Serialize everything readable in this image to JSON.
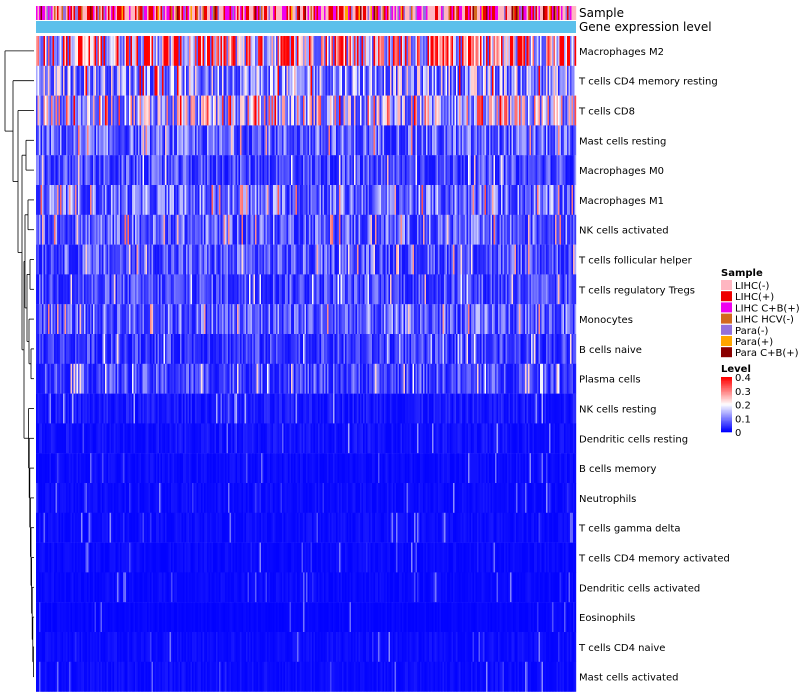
{
  "chart_data": {
    "type": "heatmap",
    "annotation_tracks": [
      "Sample",
      "Gene expression level"
    ],
    "rows": [
      {
        "name": "Macrophages M2",
        "mean": 0.28
      },
      {
        "name": "T cells CD4 memory resting",
        "mean": 0.13
      },
      {
        "name": "T cells CD8",
        "mean": 0.18
      },
      {
        "name": "Mast cells resting",
        "mean": 0.08
      },
      {
        "name": "Macrophages M0",
        "mean": 0.06
      },
      {
        "name": "Macrophages M1",
        "mean": 0.09
      },
      {
        "name": "NK cells activated",
        "mean": 0.08
      },
      {
        "name": "T cells follicular helper",
        "mean": 0.07
      },
      {
        "name": "T cells regulatory  Tregs",
        "mean": 0.06
      },
      {
        "name": "Monocytes",
        "mean": 0.08
      },
      {
        "name": "B cells naive",
        "mean": 0.05
      },
      {
        "name": "Plasma cells",
        "mean": 0.06
      },
      {
        "name": "NK cells resting",
        "mean": 0.02
      },
      {
        "name": "Dendritic cells resting",
        "mean": 0.015
      },
      {
        "name": "B cells memory",
        "mean": 0.01
      },
      {
        "name": "Neutrophils",
        "mean": 0.01
      },
      {
        "name": "T cells gamma delta",
        "mean": 0.01
      },
      {
        "name": "T cells CD4 memory activated",
        "mean": 0.008
      },
      {
        "name": "Dendritic cells activated",
        "mean": 0.008
      },
      {
        "name": "Eosinophils",
        "mean": 0.005
      },
      {
        "name": "T cells CD4 naive",
        "mean": 0.01
      },
      {
        "name": "Mast cells activated",
        "mean": 0.01
      }
    ],
    "sample_legend": {
      "title": "Sample",
      "items": [
        {
          "label": "LIHC(-)",
          "color": "#FFB6C1"
        },
        {
          "label": "LIHC(+)",
          "color": "#EE0000"
        },
        {
          "label": "LIHC C+B(+)",
          "color": "#EE00EE"
        },
        {
          "label": "LIHC HCV(-)",
          "color": "#D2691E"
        },
        {
          "label": "Para(-)",
          "color": "#9370DB"
        },
        {
          "label": "Para(+)",
          "color": "#FFA500"
        },
        {
          "label": "Para C+B(+)",
          "color": "#8B0000"
        }
      ]
    },
    "level_legend": {
      "title": "Level",
      "ticks": [
        "0.4",
        "0.3",
        "0.2",
        "0.1",
        "0"
      ],
      "range": [
        0,
        0.4
      ],
      "colors": [
        "#0000FF",
        "#FFFFFF",
        "#FF0000"
      ]
    },
    "expression_track_color": "#5BC0EB"
  }
}
